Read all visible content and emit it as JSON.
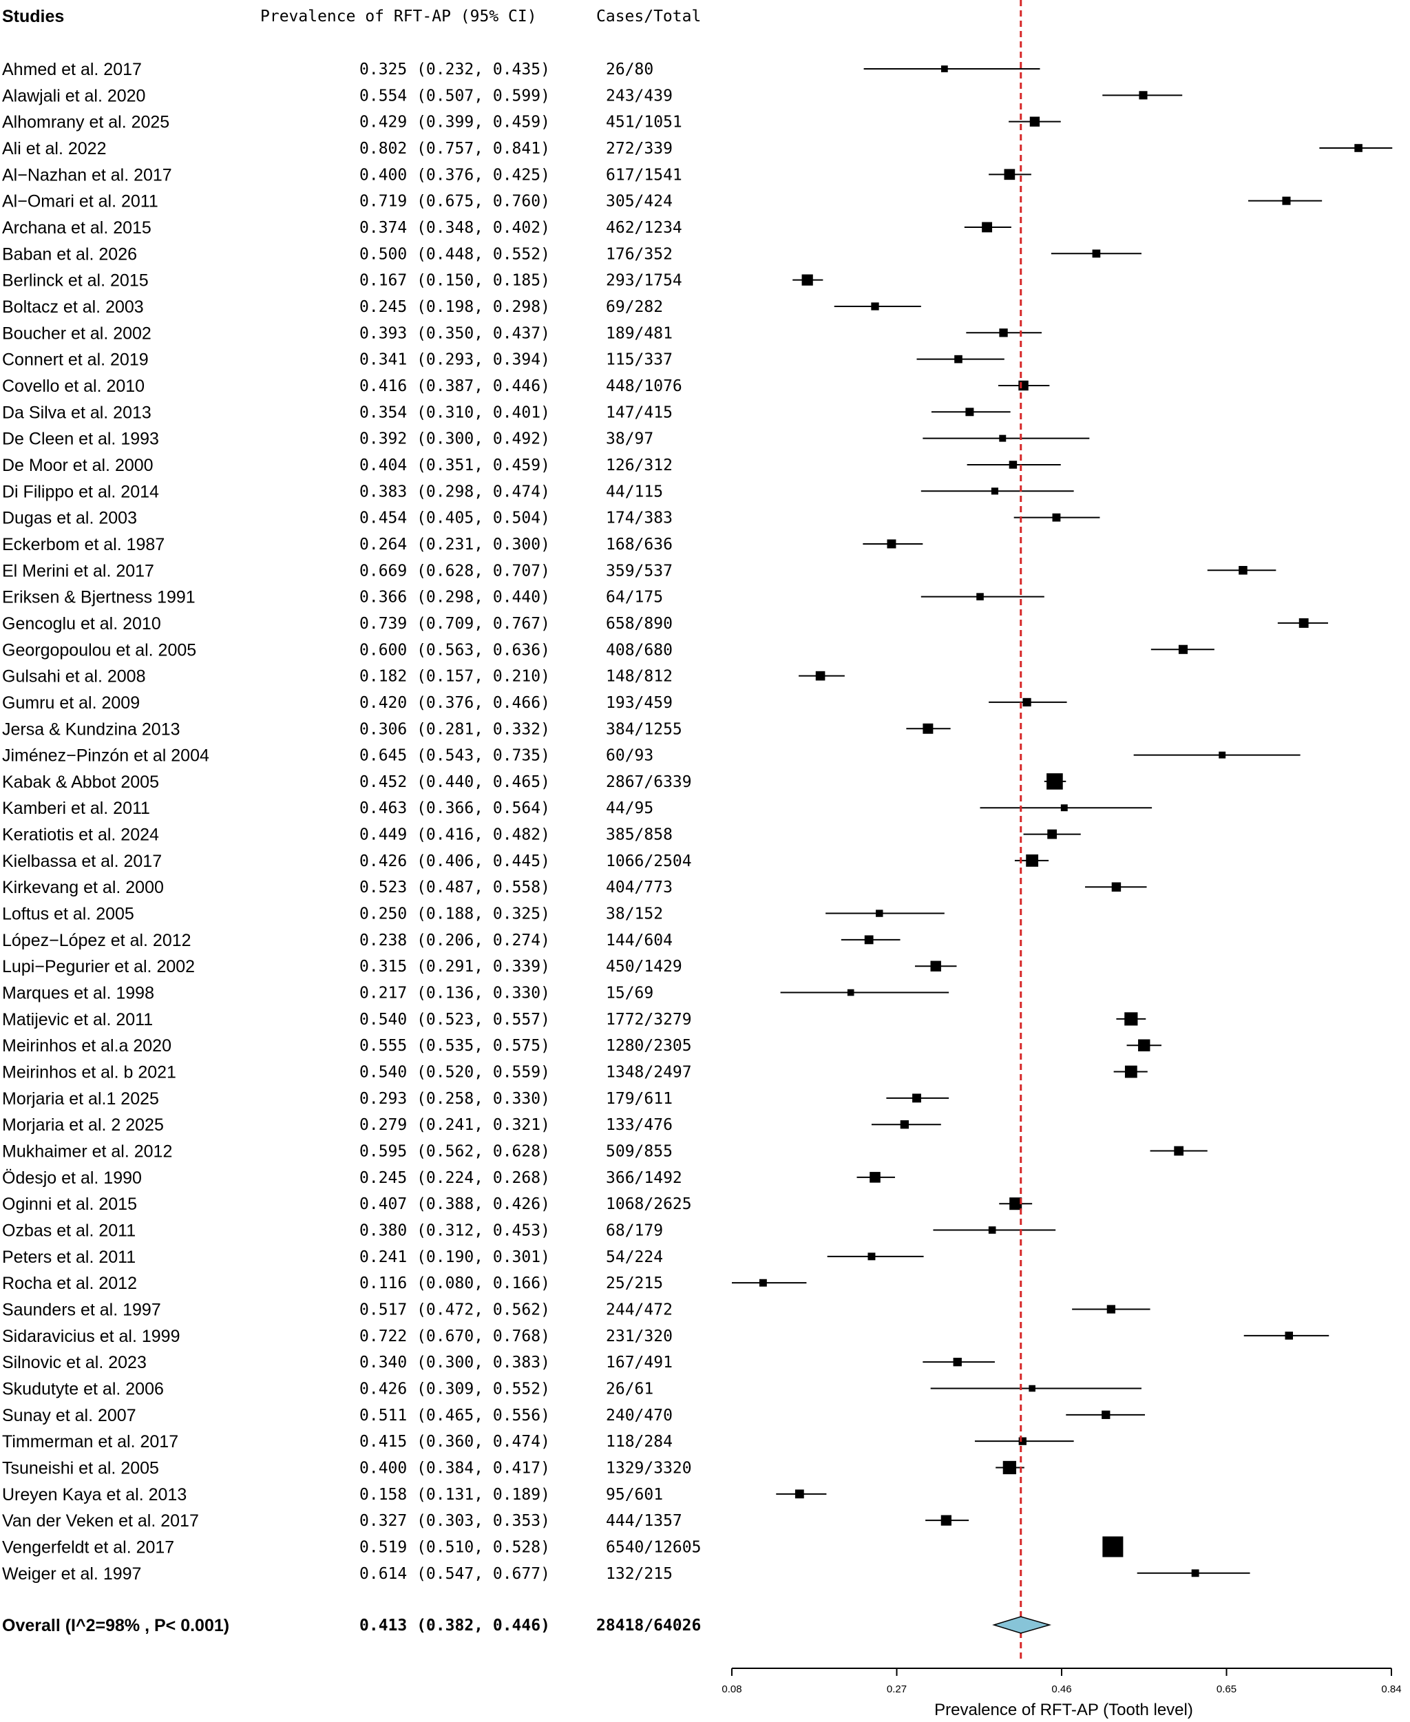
{
  "header": {
    "studies": "Studies",
    "prevalence": "Prevalence of RFT-AP (95% CI)",
    "cases": "Cases/Total"
  },
  "chart_data": {
    "type": "forest",
    "xlabel": "Prevalence of RFT-AP (Tooth level)",
    "xlim": [
      0.08,
      0.84
    ],
    "xticks": [
      "0.08",
      "0.27",
      "0.46",
      "0.65",
      "0.84"
    ],
    "reference_line": 0.413,
    "reference_color": "#d62728",
    "diamond_color": "#87c4d8",
    "studies": [
      {
        "label": "Ahmed et al. 2017",
        "est": 0.325,
        "lo": 0.232,
        "hi": 0.435,
        "ci_text": "0.325 (0.232, 0.435)",
        "cases": "26/80",
        "n": 80
      },
      {
        "label": "Alawjali et al. 2020",
        "est": 0.554,
        "lo": 0.507,
        "hi": 0.599,
        "ci_text": "0.554 (0.507, 0.599)",
        "cases": "243/439",
        "n": 439
      },
      {
        "label": "Alhomrany et al. 2025",
        "est": 0.429,
        "lo": 0.399,
        "hi": 0.459,
        "ci_text": "0.429 (0.399, 0.459)",
        "cases": "451/1051",
        "n": 1051
      },
      {
        "label": "Ali et al. 2022",
        "est": 0.802,
        "lo": 0.757,
        "hi": 0.841,
        "ci_text": "0.802 (0.757, 0.841)",
        "cases": "272/339",
        "n": 339
      },
      {
        "label": "Al−Nazhan et al. 2017",
        "est": 0.4,
        "lo": 0.376,
        "hi": 0.425,
        "ci_text": "0.400 (0.376, 0.425)",
        "cases": "617/1541",
        "n": 1541
      },
      {
        "label": "Al−Omari et al. 2011",
        "est": 0.719,
        "lo": 0.675,
        "hi": 0.76,
        "ci_text": "0.719 (0.675, 0.760)",
        "cases": "305/424",
        "n": 424
      },
      {
        "label": "Archana et al. 2015",
        "est": 0.374,
        "lo": 0.348,
        "hi": 0.402,
        "ci_text": "0.374 (0.348, 0.402)",
        "cases": "462/1234",
        "n": 1234
      },
      {
        "label": "Baban et al.  2026",
        "est": 0.5,
        "lo": 0.448,
        "hi": 0.552,
        "ci_text": "0.500 (0.448, 0.552)",
        "cases": "176/352",
        "n": 352
      },
      {
        "label": "Berlinck et al. 2015",
        "est": 0.167,
        "lo": 0.15,
        "hi": 0.185,
        "ci_text": "0.167 (0.150, 0.185)",
        "cases": "293/1754",
        "n": 1754
      },
      {
        "label": "Boltacz et al.  2003",
        "est": 0.245,
        "lo": 0.198,
        "hi": 0.298,
        "ci_text": "0.245 (0.198, 0.298)",
        "cases": "69/282",
        "n": 282
      },
      {
        "label": "Boucher et al.  2002",
        "est": 0.393,
        "lo": 0.35,
        "hi": 0.437,
        "ci_text": "0.393 (0.350, 0.437)",
        "cases": "189/481",
        "n": 481
      },
      {
        "label": "Connert et al. 2019",
        "est": 0.341,
        "lo": 0.293,
        "hi": 0.394,
        "ci_text": "0.341 (0.293, 0.394)",
        "cases": "115/337",
        "n": 337
      },
      {
        "label": "Covello et al. 2010",
        "est": 0.416,
        "lo": 0.387,
        "hi": 0.446,
        "ci_text": "0.416 (0.387, 0.446)",
        "cases": "448/1076",
        "n": 1076
      },
      {
        "label": "Da Silva et al. 2013",
        "est": 0.354,
        "lo": 0.31,
        "hi": 0.401,
        "ci_text": "0.354 (0.310, 0.401)",
        "cases": "147/415",
        "n": 415
      },
      {
        "label": "De Cleen et al. 1993",
        "est": 0.392,
        "lo": 0.3,
        "hi": 0.492,
        "ci_text": "0.392 (0.300, 0.492)",
        "cases": "38/97",
        "n": 97
      },
      {
        "label": "De Moor et al. 2000",
        "est": 0.404,
        "lo": 0.351,
        "hi": 0.459,
        "ci_text": "0.404 (0.351, 0.459)",
        "cases": "126/312",
        "n": 312
      },
      {
        "label": "Di Filippo et al. 2014",
        "est": 0.383,
        "lo": 0.298,
        "hi": 0.474,
        "ci_text": "0.383 (0.298, 0.474)",
        "cases": "44/115",
        "n": 115
      },
      {
        "label": "Dugas et al. 2003",
        "est": 0.454,
        "lo": 0.405,
        "hi": 0.504,
        "ci_text": "0.454 (0.405, 0.504)",
        "cases": "174/383",
        "n": 383
      },
      {
        "label": "Eckerbom et al. 1987",
        "est": 0.264,
        "lo": 0.231,
        "hi": 0.3,
        "ci_text": "0.264 (0.231, 0.300)",
        "cases": "168/636",
        "n": 636
      },
      {
        "label": "El Merini et al. 2017",
        "est": 0.669,
        "lo": 0.628,
        "hi": 0.707,
        "ci_text": "0.669 (0.628, 0.707)",
        "cases": "359/537",
        "n": 537
      },
      {
        "label": "Eriksen & Bjertness 1991",
        "est": 0.366,
        "lo": 0.298,
        "hi": 0.44,
        "ci_text": "0.366 (0.298, 0.440)",
        "cases": "64/175",
        "n": 175
      },
      {
        "label": "Gencoglu et al. 2010",
        "est": 0.739,
        "lo": 0.709,
        "hi": 0.767,
        "ci_text": "0.739 (0.709, 0.767)",
        "cases": "658/890",
        "n": 890
      },
      {
        "label": "Georgopoulou et al.  2005",
        "est": 0.6,
        "lo": 0.563,
        "hi": 0.636,
        "ci_text": "0.600 (0.563, 0.636)",
        "cases": "408/680",
        "n": 680
      },
      {
        "label": "Gulsahi et al. 2008",
        "est": 0.182,
        "lo": 0.157,
        "hi": 0.21,
        "ci_text": "0.182 (0.157, 0.210)",
        "cases": "148/812",
        "n": 812
      },
      {
        "label": "Gumru et al. 2009",
        "est": 0.42,
        "lo": 0.376,
        "hi": 0.466,
        "ci_text": "0.420 (0.376, 0.466)",
        "cases": "193/459",
        "n": 459
      },
      {
        "label": "Jersa & Kundzina  2013",
        "est": 0.306,
        "lo": 0.281,
        "hi": 0.332,
        "ci_text": "0.306 (0.281, 0.332)",
        "cases": "384/1255",
        "n": 1255
      },
      {
        "label": "Jiménez−Pinzón et al 2004",
        "est": 0.645,
        "lo": 0.543,
        "hi": 0.735,
        "ci_text": "0.645 (0.543, 0.735)",
        "cases": "60/93",
        "n": 93
      },
      {
        "label": "Kabak & Abbot 2005",
        "est": 0.452,
        "lo": 0.44,
        "hi": 0.465,
        "ci_text": "0.452 (0.440, 0.465)",
        "cases": "2867/6339",
        "n": 6339
      },
      {
        "label": "Kamberi et al. 2011",
        "est": 0.463,
        "lo": 0.366,
        "hi": 0.564,
        "ci_text": "0.463 (0.366, 0.564)",
        "cases": "44/95",
        "n": 95
      },
      {
        "label": "Keratiotis et al. 2024",
        "est": 0.449,
        "lo": 0.416,
        "hi": 0.482,
        "ci_text": "0.449 (0.416, 0.482)",
        "cases": "385/858",
        "n": 858
      },
      {
        "label": "Kielbassa et al. 2017",
        "est": 0.426,
        "lo": 0.406,
        "hi": 0.445,
        "ci_text": "0.426 (0.406, 0.445)",
        "cases": "1066/2504",
        "n": 2504
      },
      {
        "label": "Kirkevang et al. 2000",
        "est": 0.523,
        "lo": 0.487,
        "hi": 0.558,
        "ci_text": "0.523 (0.487, 0.558)",
        "cases": "404/773",
        "n": 773
      },
      {
        "label": "Loftus et al. 2005",
        "est": 0.25,
        "lo": 0.188,
        "hi": 0.325,
        "ci_text": "0.250 (0.188, 0.325)",
        "cases": "38/152",
        "n": 152
      },
      {
        "label": "López−López et al. 2012",
        "est": 0.238,
        "lo": 0.206,
        "hi": 0.274,
        "ci_text": "0.238 (0.206, 0.274)",
        "cases": "144/604",
        "n": 604
      },
      {
        "label": "Lupi−Pegurier et al. 2002",
        "est": 0.315,
        "lo": 0.291,
        "hi": 0.339,
        "ci_text": "0.315 (0.291, 0.339)",
        "cases": "450/1429",
        "n": 1429
      },
      {
        "label": "Marques et al. 1998",
        "est": 0.217,
        "lo": 0.136,
        "hi": 0.33,
        "ci_text": "0.217 (0.136, 0.330)",
        "cases": "15/69",
        "n": 69
      },
      {
        "label": "Matijevic et al. 2011",
        "est": 0.54,
        "lo": 0.523,
        "hi": 0.557,
        "ci_text": "0.540 (0.523, 0.557)",
        "cases": "1772/3279",
        "n": 3279
      },
      {
        "label": "Meirinhos et al.a 2020",
        "est": 0.555,
        "lo": 0.535,
        "hi": 0.575,
        "ci_text": "0.555 (0.535, 0.575)",
        "cases": "1280/2305",
        "n": 2305
      },
      {
        "label": "Meirinhos et al. b 2021",
        "est": 0.54,
        "lo": 0.52,
        "hi": 0.559,
        "ci_text": "0.540 (0.520, 0.559)",
        "cases": "1348/2497",
        "n": 2497
      },
      {
        "label": "Morjaria et al.1 2025",
        "est": 0.293,
        "lo": 0.258,
        "hi": 0.33,
        "ci_text": "0.293 (0.258, 0.330)",
        "cases": "179/611",
        "n": 611
      },
      {
        "label": "Morjaria et al. 2 2025",
        "est": 0.279,
        "lo": 0.241,
        "hi": 0.321,
        "ci_text": "0.279 (0.241, 0.321)",
        "cases": "133/476",
        "n": 476
      },
      {
        "label": "Mukhaimer et al.  2012",
        "est": 0.595,
        "lo": 0.562,
        "hi": 0.628,
        "ci_text": "0.595 (0.562, 0.628)",
        "cases": "509/855",
        "n": 855
      },
      {
        "label": "Ödesjo et al.  1990",
        "est": 0.245,
        "lo": 0.224,
        "hi": 0.268,
        "ci_text": "0.245 (0.224, 0.268)",
        "cases": "366/1492",
        "n": 1492
      },
      {
        "label": "Oginni et al. 2015",
        "est": 0.407,
        "lo": 0.388,
        "hi": 0.426,
        "ci_text": "0.407 (0.388, 0.426)",
        "cases": "1068/2625",
        "n": 2625
      },
      {
        "label": "Ozbas et al. 2011",
        "est": 0.38,
        "lo": 0.312,
        "hi": 0.453,
        "ci_text": "0.380 (0.312, 0.453)",
        "cases": "68/179",
        "n": 179
      },
      {
        "label": "Peters et al. 2011",
        "est": 0.241,
        "lo": 0.19,
        "hi": 0.301,
        "ci_text": "0.241 (0.190, 0.301)",
        "cases": "54/224",
        "n": 224
      },
      {
        "label": "Rocha et al. 2012",
        "est": 0.116,
        "lo": 0.08,
        "hi": 0.166,
        "ci_text": "0.116 (0.080, 0.166)",
        "cases": "25/215",
        "n": 215
      },
      {
        "label": "Saunders et al. 1997",
        "est": 0.517,
        "lo": 0.472,
        "hi": 0.562,
        "ci_text": "0.517 (0.472, 0.562)",
        "cases": "244/472",
        "n": 472
      },
      {
        "label": "Sidaravicius et al. 1999",
        "est": 0.722,
        "lo": 0.67,
        "hi": 0.768,
        "ci_text": "0.722 (0.670, 0.768)",
        "cases": "231/320",
        "n": 320
      },
      {
        "label": "Silnovic et al. 2023",
        "est": 0.34,
        "lo": 0.3,
        "hi": 0.383,
        "ci_text": "0.340 (0.300, 0.383)",
        "cases": "167/491",
        "n": 491
      },
      {
        "label": "Skudutyte et al. 2006",
        "est": 0.426,
        "lo": 0.309,
        "hi": 0.552,
        "ci_text": "0.426 (0.309, 0.552)",
        "cases": "26/61",
        "n": 61
      },
      {
        "label": "Sunay et al. 2007",
        "est": 0.511,
        "lo": 0.465,
        "hi": 0.556,
        "ci_text": "0.511 (0.465, 0.556)",
        "cases": "240/470",
        "n": 470
      },
      {
        "label": "Timmerman et al. 2017",
        "est": 0.415,
        "lo": 0.36,
        "hi": 0.474,
        "ci_text": "0.415 (0.360, 0.474)",
        "cases": "118/284",
        "n": 284
      },
      {
        "label": "Tsuneishi et al. 2005",
        "est": 0.4,
        "lo": 0.384,
        "hi": 0.417,
        "ci_text": "0.400 (0.384, 0.417)",
        "cases": "1329/3320",
        "n": 3320
      },
      {
        "label": "Ureyen Kaya et al. 2013",
        "est": 0.158,
        "lo": 0.131,
        "hi": 0.189,
        "ci_text": "0.158 (0.131, 0.189)",
        "cases": "95/601",
        "n": 601
      },
      {
        "label": "Van der Veken et al. 2017",
        "est": 0.327,
        "lo": 0.303,
        "hi": 0.353,
        "ci_text": "0.327 (0.303, 0.353)",
        "cases": "444/1357",
        "n": 1357
      },
      {
        "label": "Vengerfeldt et al. 2017",
        "est": 0.519,
        "lo": 0.51,
        "hi": 0.528,
        "ci_text": "0.519 (0.510, 0.528)",
        "cases": "6540/12605",
        "n": 12605
      },
      {
        "label": "Weiger et al. 1997",
        "est": 0.614,
        "lo": 0.547,
        "hi": 0.677,
        "ci_text": "0.614 (0.547, 0.677)",
        "cases": "132/215",
        "n": 215
      }
    ],
    "overall": {
      "label": "Overall (I^2=98% , P< 0.001)",
      "est": 0.413,
      "lo": 0.382,
      "hi": 0.446,
      "ci_text": "0.413 (0.382, 0.446)",
      "cases": "28418/64026"
    }
  }
}
